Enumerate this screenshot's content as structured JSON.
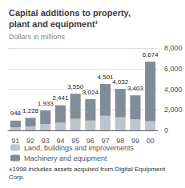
{
  "chart_data": {
    "type": "bar",
    "title": "Capital additions to property,\nplant and equipment¹",
    "subtitle": "Dollars in millions",
    "annotations": [
      "±1998 includes assets acquired from Digital Equipment Corp."
    ],
    "categories": [
      "91",
      "92",
      "93",
      "94",
      "95",
      "96",
      "97",
      "98",
      "99",
      "00"
    ],
    "series": [
      {
        "name": "Land, buildings and improvements",
        "color": "#bdc5cc",
        "values": [
          300,
          390,
          610,
          770,
          1120,
          955,
          1420,
          1270,
          1075,
          900
        ]
      },
      {
        "name": "Machinery and equipment",
        "color": "#808d98",
        "values": [
          648,
          838,
          1323,
          1671,
          2430,
          2069,
          3081,
          2762,
          2328,
          5774
        ]
      }
    ],
    "totals": {
      "values": [
        948,
        1228,
        1933,
        2441,
        3550,
        3024,
        4501,
        4032,
        3403,
        6674
      ],
      "value_labels": [
        "948",
        "1,228",
        "1,933",
        "2,441",
        "3,550",
        "3,024",
        "4,501",
        "4,032",
        "3,403",
        "6,674"
      ]
    },
    "stacked": true,
    "ylim": [
      0,
      8000
    ],
    "yticks": [
      0,
      {
        "value": 2000,
        "label": "2,000"
      },
      {
        "value": 4000,
        "label": "4,000"
      },
      {
        "value": 6000,
        "label": "6,000"
      },
      {
        "value": 8000,
        "label": "8,000"
      }
    ],
    "grid": true,
    "legend": "bottom"
  }
}
